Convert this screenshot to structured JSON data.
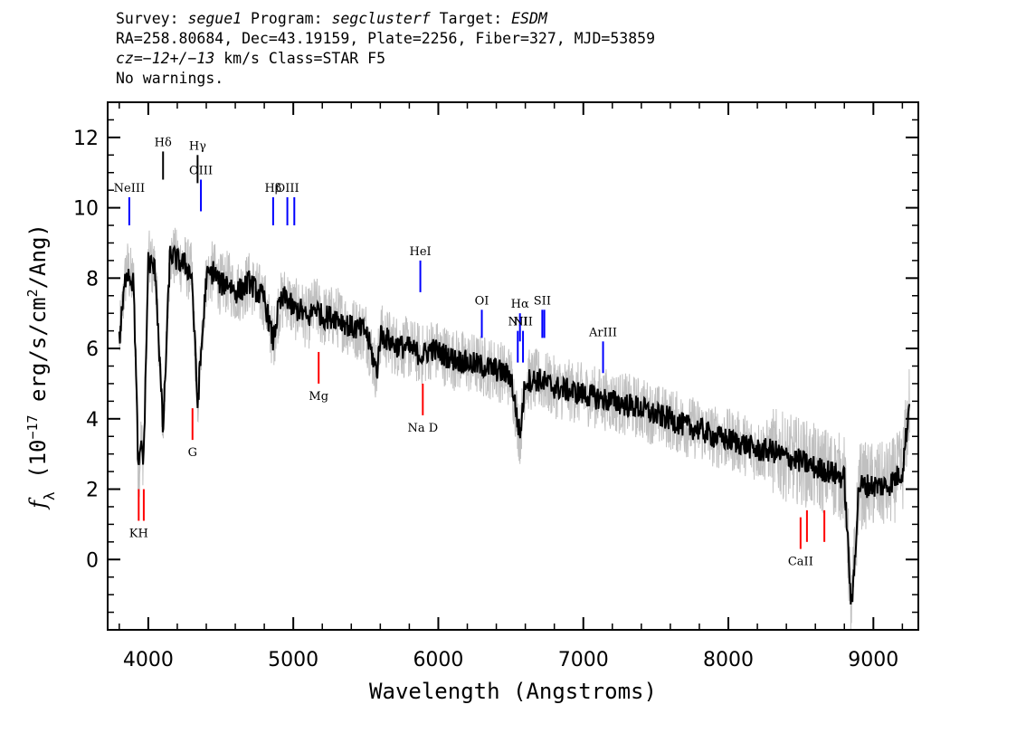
{
  "header": {
    "line1": {
      "survey_label": "Survey: ",
      "survey": "segue1",
      "program_label": " Program: ",
      "program": "segclusterf",
      "target_label": " Target: ",
      "target": "ESDM"
    },
    "line2": "RA=258.80684, Dec=43.19159, Plate=2256, Fiber=327, MJD=53859",
    "line3": {
      "cz_label": "cz",
      "cz_value": "=−12+/−13",
      "rest": " km/s Class=STAR F5"
    },
    "line4": "No warnings."
  },
  "chart_data": {
    "type": "line",
    "xlabel": "Wavelength (Angstroms)",
    "ylabel": "fλ (10⁻¹⁷ erg/s/cm²/Ang)",
    "ylabel_parts": {
      "symbol": "f",
      "sub": "λ",
      "text1": " (10",
      "exp1": "−17",
      "text2": " erg/s/cm",
      "exp2": "2",
      "text3": "/Ang)"
    },
    "xlim": [
      3720,
      9310
    ],
    "ylim": [
      -2.0,
      13.0
    ],
    "x_ticks": [
      4000,
      5000,
      6000,
      7000,
      8000,
      9000
    ],
    "x_tick_labels": [
      "4000",
      "5000",
      "6000",
      "7000",
      "8000",
      "9000"
    ],
    "y_ticks": [
      0,
      2,
      4,
      6,
      8,
      10,
      12
    ],
    "y_tick_labels": [
      "0",
      "2",
      "4",
      "6",
      "8",
      "10",
      "12"
    ],
    "series": [
      {
        "style": "model/smoothed",
        "color": "#000000",
        "x": [
          3800,
          3850,
          3900,
          3933,
          3950,
          3968,
          4000,
          4050,
          4102,
          4150,
          4200,
          4250,
          4300,
          4340,
          4400,
          4450,
          4500,
          4550,
          4600,
          4650,
          4700,
          4750,
          4800,
          4861,
          4900,
          4950,
          5000,
          5050,
          5100,
          5150,
          5200,
          5300,
          5400,
          5500,
          5577,
          5600,
          5700,
          5800,
          5893,
          5950,
          6000,
          6100,
          6200,
          6300,
          6400,
          6500,
          6563,
          6600,
          6700,
          6800,
          6900,
          7000,
          7100,
          7200,
          7300,
          7400,
          7500,
          7600,
          7700,
          7800,
          7900,
          8000,
          8100,
          8200,
          8300,
          8400,
          8500,
          8600,
          8700,
          8800,
          8850,
          8900,
          9000,
          9100,
          9200,
          9250
        ],
        "y": [
          6.2,
          8.3,
          7.8,
          2.3,
          3.4,
          2.8,
          8.5,
          8.2,
          3.6,
          8.7,
          8.5,
          8.4,
          8.1,
          4.4,
          8.0,
          8.2,
          7.8,
          7.9,
          7.6,
          7.7,
          7.9,
          7.6,
          7.4,
          6.2,
          7.2,
          7.5,
          7.1,
          7.1,
          6.8,
          7.2,
          6.9,
          6.9,
          6.6,
          6.5,
          5.3,
          6.4,
          6.1,
          6.0,
          5.8,
          6.0,
          5.9,
          5.7,
          5.6,
          5.5,
          5.4,
          5.2,
          3.5,
          5.1,
          5.1,
          4.9,
          4.8,
          4.7,
          4.6,
          4.5,
          4.4,
          4.3,
          4.1,
          4.0,
          3.8,
          3.7,
          3.5,
          3.4,
          3.3,
          3.1,
          3.1,
          2.9,
          2.8,
          2.6,
          2.5,
          2.3,
          -1.5,
          2.1,
          2.1,
          2.1,
          2.5,
          4.5
        ]
      }
    ],
    "error_band": {
      "style": "observed",
      "color": "#c0c0c0",
      "scatter_sigma": 0.9
    },
    "emission_lines": [
      {
        "label": "NeIII",
        "wavelength": 3869,
        "y_top": 10.3,
        "y_bottom": 9.5,
        "color": "#0000ff"
      },
      {
        "label": "Hδ",
        "wavelength": 4102,
        "y_top": 11.6,
        "y_bottom": 10.8,
        "color": "#000000"
      },
      {
        "label": "Hγ",
        "wavelength": 4340,
        "y_top": 11.5,
        "y_bottom": 10.7,
        "color": "#000000"
      },
      {
        "label": "OIII",
        "wavelength": 4363,
        "y_top": 10.8,
        "y_bottom": 9.9,
        "color": "#0000ff"
      },
      {
        "label": "Hβ",
        "wavelength": 4861,
        "y_top": 10.3,
        "y_bottom": 9.5,
        "color": "#0000ff"
      },
      {
        "label": "OIII",
        "wavelength": 4959,
        "y_top": 10.3,
        "y_bottom": 9.5,
        "color": "#0000ff"
      },
      {
        "label": "",
        "wavelength": 5007,
        "y_top": 10.3,
        "y_bottom": 9.5,
        "color": "#0000ff"
      },
      {
        "label": "HeI",
        "wavelength": 5876,
        "y_top": 8.5,
        "y_bottom": 7.6,
        "color": "#0000ff"
      },
      {
        "label": "OI",
        "wavelength": 6300,
        "y_top": 7.1,
        "y_bottom": 6.3,
        "color": "#0000ff"
      },
      {
        "label": "NII",
        "wavelength": 6548,
        "y_top": 6.5,
        "y_bottom": 5.6,
        "color": "#0000ff"
      },
      {
        "label": "Hα",
        "wavelength": 6563,
        "y_top": 7.0,
        "y_bottom": 6.2,
        "color": "#0000ff"
      },
      {
        "label": "NII",
        "wavelength": 6584,
        "y_top": 6.5,
        "y_bottom": 5.6,
        "color": "#0000ff"
      },
      {
        "label": "SII",
        "wavelength": 6717,
        "y_top": 7.1,
        "y_bottom": 6.3,
        "color": "#0000ff"
      },
      {
        "label": "",
        "wavelength": 6731,
        "y_top": 7.1,
        "y_bottom": 6.3,
        "color": "#0000ff"
      },
      {
        "label": "ArIII",
        "wavelength": 7136,
        "y_top": 6.2,
        "y_bottom": 5.3,
        "color": "#0000ff"
      }
    ],
    "absorption_lines": [
      {
        "label": "KH",
        "wavelength": 3934,
        "y_top": 2.0,
        "y_bottom": 1.1,
        "color": "#ff0000"
      },
      {
        "label": "",
        "wavelength": 3969,
        "y_top": 2.0,
        "y_bottom": 1.1,
        "color": "#ff0000"
      },
      {
        "label": "G",
        "wavelength": 4305,
        "y_top": 4.3,
        "y_bottom": 3.4,
        "color": "#ff0000"
      },
      {
        "label": "Mg",
        "wavelength": 5175,
        "y_top": 5.9,
        "y_bottom": 5.0,
        "color": "#ff0000"
      },
      {
        "label": "Na D",
        "wavelength": 5893,
        "y_top": 5.0,
        "y_bottom": 4.1,
        "color": "#ff0000"
      },
      {
        "label": "CaII",
        "wavelength": 8498,
        "y_top": 1.2,
        "y_bottom": 0.3,
        "color": "#ff0000"
      },
      {
        "label": "",
        "wavelength": 8542,
        "y_top": 1.4,
        "y_bottom": 0.5,
        "color": "#ff0000"
      },
      {
        "label": "",
        "wavelength": 8662,
        "y_top": 1.4,
        "y_bottom": 0.5,
        "color": "#ff0000"
      }
    ]
  }
}
